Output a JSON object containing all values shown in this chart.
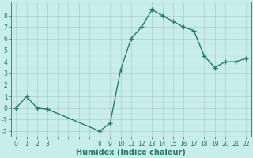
{
  "x": [
    0,
    1,
    2,
    3,
    8,
    9,
    10,
    11,
    12,
    13,
    14,
    15,
    16,
    17,
    18,
    19,
    20,
    21,
    22
  ],
  "y": [
    0.0,
    1.0,
    0.0,
    -0.1,
    -2.0,
    -1.3,
    3.3,
    6.0,
    7.0,
    8.5,
    8.0,
    7.5,
    7.0,
    6.7,
    4.5,
    3.5,
    4.0,
    4.0,
    4.3
  ],
  "line_color": "#2a7a6a",
  "marker": "+",
  "marker_color": "#2a7a6a",
  "bg_color": "#c8eded",
  "grid_major_color": "#aacece",
  "grid_minor_color": "#bbdddd",
  "xlabel": "Humidex (Indice chaleur)",
  "xlim": [
    -0.5,
    22.5
  ],
  "ylim": [
    -2.5,
    9.2
  ],
  "xticks_all": [
    0,
    1,
    2,
    3,
    4,
    5,
    6,
    7,
    8,
    9,
    10,
    11,
    12,
    13,
    14,
    15,
    16,
    17,
    18,
    19,
    20,
    21,
    22
  ],
  "xtick_labels": [
    "0",
    "1",
    "2",
    "3",
    "",
    "",
    "",
    "",
    "8",
    "9",
    "10",
    "11",
    "12",
    "13",
    "14",
    "15",
    "16",
    "17",
    "18",
    "19",
    "20",
    "21",
    "22"
  ],
  "yticks": [
    -2,
    -1,
    0,
    1,
    2,
    3,
    4,
    5,
    6,
    7,
    8
  ],
  "font_color": "#2a7a6a",
  "linewidth": 1.0,
  "markersize": 4,
  "xlabel_fontsize": 7,
  "tick_fontsize": 5.5
}
